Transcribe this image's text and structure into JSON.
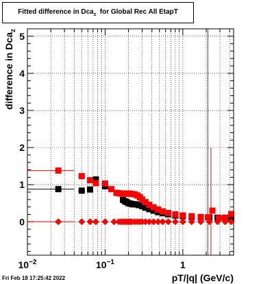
{
  "page": {
    "title_main": "Fitted difference in Dca",
    "title_sub": "z",
    "title_tail": "for Global Rec All EtapT",
    "timestamp": "Fri Feb 18 17:25:42 2022"
  },
  "chart_data": {
    "type": "scatter",
    "xscale": "log",
    "xlim": [
      0.01,
      4.5
    ],
    "ylim": [
      -0.9,
      5.2
    ],
    "grid": true,
    "xlabel": "pT/|q| (GeV/c)",
    "ylabel_main": "difference in Dca",
    "ylabel_sub": "z",
    "xticks": [
      {
        "value": 0.01,
        "base": "10",
        "exp": "−2"
      },
      {
        "value": 0.1,
        "base": "10",
        "exp": "−1"
      },
      {
        "value": 1,
        "base": "1",
        "exp": ""
      }
    ],
    "yticks": [
      {
        "value": 0,
        "label": "0"
      },
      {
        "value": 1,
        "label": "1"
      },
      {
        "value": 2,
        "label": "2"
      },
      {
        "value": 3,
        "label": "3"
      },
      {
        "value": 4,
        "label": "4"
      },
      {
        "value": 5,
        "label": "5"
      }
    ],
    "series": [
      {
        "color": "#000000",
        "marker": "square",
        "points": [
          {
            "x": 0.025,
            "y": 0.88,
            "xerr": [
              0.01,
              0.04
            ]
          },
          {
            "x": 0.05,
            "y": 0.84,
            "xerr": [
              0.045,
              0.055
            ]
          },
          {
            "x": 0.064,
            "y": 0.87,
            "xerr": [
              0.059,
              0.069
            ]
          },
          {
            "x": 0.076,
            "y": 1.14,
            "xerr": [
              0.071,
              0.081
            ]
          },
          {
            "x": 0.1,
            "y": 0.96,
            "xerr": [
              0.095,
              0.105
            ]
          },
          {
            "x": 0.17,
            "y": 0.59
          },
          {
            "x": 0.18,
            "y": 0.55
          },
          {
            "x": 0.19,
            "y": 0.53
          },
          {
            "x": 0.2,
            "y": 0.5
          },
          {
            "x": 0.21,
            "y": 0.49
          },
          {
            "x": 0.22,
            "y": 0.48
          },
          {
            "x": 0.23,
            "y": 0.47
          },
          {
            "x": 0.24,
            "y": 0.47
          },
          {
            "x": 0.25,
            "y": 0.47
          },
          {
            "x": 0.27,
            "y": 0.45
          },
          {
            "x": 0.3,
            "y": 0.42
          },
          {
            "x": 0.33,
            "y": 0.38
          },
          {
            "x": 0.37,
            "y": 0.34
          },
          {
            "x": 0.42,
            "y": 0.3
          },
          {
            "x": 0.48,
            "y": 0.26
          },
          {
            "x": 0.55,
            "y": 0.23
          },
          {
            "x": 0.65,
            "y": 0.2
          },
          {
            "x": 0.8,
            "y": 0.17
          },
          {
            "x": 1.0,
            "y": 0.15
          },
          {
            "x": 1.3,
            "y": 0.13
          },
          {
            "x": 1.7,
            "y": 0.12
          },
          {
            "x": 2.2,
            "y": 0.12
          },
          {
            "x": 2.8,
            "y": 0.11
          },
          {
            "x": 3.5,
            "y": 0.11
          },
          {
            "x": 4.2,
            "y": 0.1
          }
        ]
      },
      {
        "color": "#ff0000",
        "marker": "square",
        "points": [
          {
            "x": 0.025,
            "y": 1.38,
            "xerr": [
              0.01,
              0.04
            ]
          },
          {
            "x": 0.05,
            "y": 1.23,
            "xerr": [
              0.045,
              0.055
            ]
          },
          {
            "x": 0.064,
            "y": 1.12,
            "xerr": [
              0.059,
              0.069
            ]
          },
          {
            "x": 0.076,
            "y": 1.04,
            "xerr": [
              0.071,
              0.081
            ]
          },
          {
            "x": 0.1,
            "y": 1.03,
            "xerr": [
              0.095,
              0.105
            ]
          },
          {
            "x": 0.12,
            "y": 0.88
          },
          {
            "x": 0.14,
            "y": 0.78
          },
          {
            "x": 0.15,
            "y": 0.77
          },
          {
            "x": 0.16,
            "y": 0.76
          },
          {
            "x": 0.17,
            "y": 0.76
          },
          {
            "x": 0.18,
            "y": 0.76
          },
          {
            "x": 0.19,
            "y": 0.76
          },
          {
            "x": 0.2,
            "y": 0.76
          },
          {
            "x": 0.21,
            "y": 0.76
          },
          {
            "x": 0.22,
            "y": 0.75
          },
          {
            "x": 0.24,
            "y": 0.74
          },
          {
            "x": 0.26,
            "y": 0.71
          },
          {
            "x": 0.28,
            "y": 0.66
          },
          {
            "x": 0.3,
            "y": 0.6
          },
          {
            "x": 0.33,
            "y": 0.53
          },
          {
            "x": 0.37,
            "y": 0.46
          },
          {
            "x": 0.42,
            "y": 0.39
          },
          {
            "x": 0.48,
            "y": 0.33
          },
          {
            "x": 0.55,
            "y": 0.28
          },
          {
            "x": 0.65,
            "y": 0.24
          },
          {
            "x": 0.8,
            "y": 0.2
          },
          {
            "x": 1.0,
            "y": 0.17
          },
          {
            "x": 1.3,
            "y": 0.15
          },
          {
            "x": 1.7,
            "y": 0.13
          },
          {
            "x": 2.1,
            "y": 0.12
          },
          {
            "x": 2.4,
            "y": 0.3
          },
          {
            "x": 2.9,
            "y": 0.1
          },
          {
            "x": 3.5,
            "y": 0.11
          },
          {
            "x": 4.2,
            "y": 0.21
          }
        ]
      },
      {
        "color": "#ff0000",
        "marker": "diamond",
        "points": [
          {
            "x": 0.025,
            "y": 0.0,
            "xerr": [
              0.01,
              0.04
            ]
          },
          {
            "x": 0.05,
            "y": 0.0
          },
          {
            "x": 0.064,
            "y": 0.0
          },
          {
            "x": 0.076,
            "y": 0.0
          },
          {
            "x": 0.1,
            "y": 0.0
          },
          {
            "x": 0.13,
            "y": 0.0
          },
          {
            "x": 0.15,
            "y": 0.0
          },
          {
            "x": 0.16,
            "y": 0.0
          },
          {
            "x": 0.17,
            "y": 0.0
          },
          {
            "x": 0.18,
            "y": 0.0
          },
          {
            "x": 0.19,
            "y": 0.0
          },
          {
            "x": 0.2,
            "y": 0.0
          },
          {
            "x": 0.21,
            "y": 0.0
          },
          {
            "x": 0.22,
            "y": 0.0
          },
          {
            "x": 0.24,
            "y": 0.0
          },
          {
            "x": 0.26,
            "y": 0.0
          },
          {
            "x": 0.28,
            "y": 0.0
          },
          {
            "x": 0.3,
            "y": 0.0
          },
          {
            "x": 0.33,
            "y": 0.0
          },
          {
            "x": 0.37,
            "y": 0.0
          },
          {
            "x": 0.42,
            "y": 0.0
          },
          {
            "x": 0.48,
            "y": 0.0
          },
          {
            "x": 0.55,
            "y": 0.0
          },
          {
            "x": 0.65,
            "y": 0.0
          },
          {
            "x": 0.8,
            "y": 0.0
          },
          {
            "x": 1.0,
            "y": 0.0
          },
          {
            "x": 1.3,
            "y": 0.0
          },
          {
            "x": 1.7,
            "y": 0.0
          },
          {
            "x": 2.2,
            "y": 0.0
          },
          {
            "x": 2.8,
            "y": 0.0
          },
          {
            "x": 3.5,
            "y": 0.0
          },
          {
            "x": 4.2,
            "y": 0.0
          }
        ]
      }
    ],
    "vertical_lines": [
      {
        "x": 2.1,
        "y_from": -0.9,
        "y_to": 5.2,
        "color": "#ff0000"
      },
      {
        "x": 2.3,
        "y_from": -0.9,
        "y_to": 2.0,
        "color": "#ff0000"
      }
    ]
  }
}
